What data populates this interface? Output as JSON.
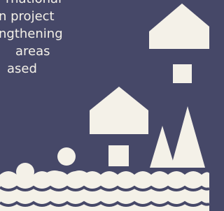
{
  "text_lines": [
    "rnational",
    "n project",
    "ngthening",
    "areas",
    "ased"
  ]
}
